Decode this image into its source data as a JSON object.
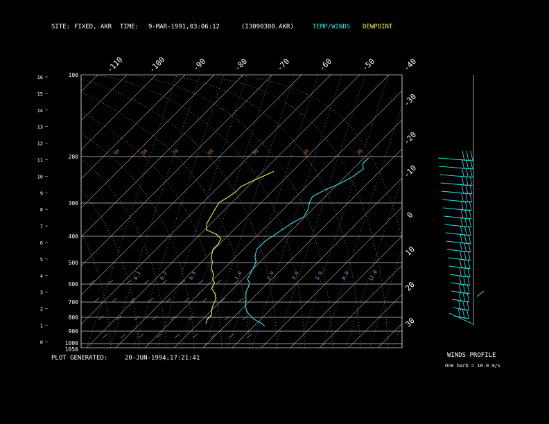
{
  "header": {
    "site_label": "SITE:",
    "site_value": "FIXED, AKR",
    "time_label": "TIME:",
    "time_value": "9-MAR-1991,03:06:12",
    "file_id": "(I3090300.AKR)",
    "legend_temp": "TEMP/WINDS",
    "legend_dew": "DEWPOINT"
  },
  "footer": {
    "generated_label": "PLOT GENERATED:",
    "generated_value": "20-JUN-1994,17:21:41"
  },
  "winds_profile": {
    "title": "WINDS PROFILE",
    "caption": "One barb = 10.0 m/s"
  },
  "colors": {
    "background": "#000000",
    "temperature": "#33e6e6",
    "dewpoint": "#f2f25a",
    "isobar": "#c8c8c8",
    "isotherm": "#b4b4b4",
    "dry_adiabat": "#c87850",
    "mixing_ratio": "#3c78dc",
    "wind": "#33e6e6"
  },
  "chart_data": {
    "type": "line",
    "pressure_labels": [
      "100",
      "200",
      "300",
      "400",
      "500",
      "600",
      "700",
      "800",
      "900",
      "1000",
      "1050"
    ],
    "height_labels": [
      "16",
      "15",
      "14",
      "13",
      "12",
      "11",
      "10",
      "9",
      "8",
      "7",
      "6",
      "5",
      "4",
      "3",
      "2",
      "1",
      "0"
    ],
    "temperature_labels": [
      "-110",
      "-100",
      "-90",
      "-80",
      "-70",
      "-60",
      "-50",
      "-40",
      "-30",
      "-20",
      "-10",
      "0",
      "10",
      "20",
      "30"
    ],
    "theta_labels": [
      "90",
      "80",
      "70",
      "60",
      "50",
      "40",
      "30"
    ],
    "mixing_ratio_labels": [
      "0.1",
      "0.2",
      "0.5",
      "1.0",
      "2.0",
      "3.0",
      "5.0",
      "8.0",
      "12.0"
    ],
    "series": [
      {
        "x": [
          -52,
          -52,
          -50,
          -51,
          -53,
          -56,
          -58,
          -57,
          -55,
          -54,
          -56,
          -57,
          -58,
          -59,
          -59,
          -57,
          -55,
          -54,
          -53,
          -52,
          -50,
          -49,
          -48,
          -45,
          -43,
          -40,
          -36,
          -32,
          -30
        ],
        "y": [
          205,
          215,
          225,
          240,
          255,
          270,
          285,
          300,
          320,
          340,
          360,
          380,
          400,
          420,
          450,
          480,
          500,
          520,
          550,
          580,
          600,
          620,
          650,
          700,
          740,
          780,
          820,
          850,
          870
        ]
      },
      {
        "x": [
          -80,
          -82,
          -84,
          -86,
          -86,
          -87,
          -88,
          -87,
          -86,
          -85,
          -83,
          -78,
          -75,
          -74,
          -74,
          -72,
          -70,
          -68,
          -65,
          -64,
          -62,
          -61,
          -58,
          -56,
          -55,
          -54,
          -52,
          -52,
          -51
        ],
        "y": [
          230,
          240,
          250,
          262,
          275,
          290,
          300,
          320,
          340,
          360,
          380,
          395,
          410,
          430,
          450,
          480,
          500,
          530,
          560,
          580,
          600,
          630,
          660,
          690,
          720,
          750,
          790,
          820,
          850
        ]
      }
    ]
  }
}
